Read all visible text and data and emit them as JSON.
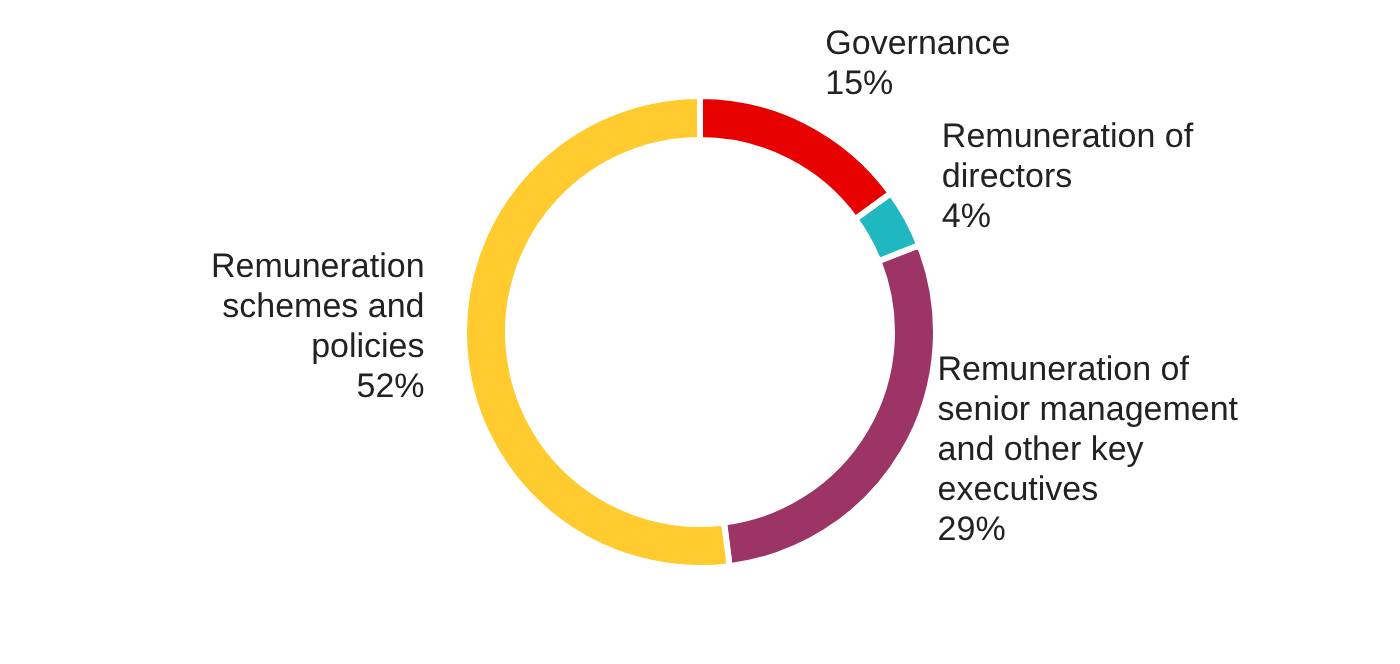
{
  "chart_data": {
    "type": "donut",
    "categories": [
      "Governance",
      "Remuneration of directors",
      "Remuneration of senior management and other key executives",
      "Remuneration schemes and policies"
    ],
    "values": [
      15,
      4,
      29,
      52
    ],
    "value_labels": [
      "15%",
      "4%",
      "29%",
      "52%"
    ],
    "colors": [
      "#e60000",
      "#1fb7c0",
      "#9c3465",
      "#ffcb2f"
    ]
  }
}
